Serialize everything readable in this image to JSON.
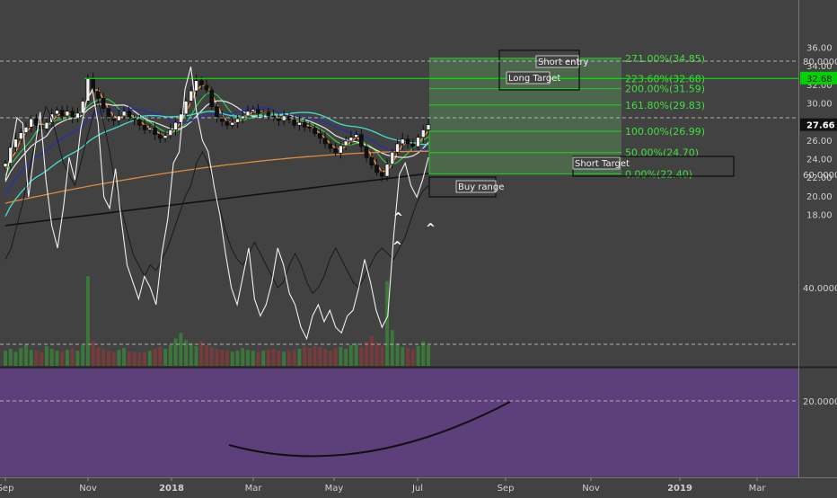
{
  "colors": {
    "background": "#424242",
    "rsi_background": "#5d3f7b",
    "fib_line": "#22c322",
    "fib_zone": "#4f6b4f",
    "fib_label": "#3ee03e",
    "price_line": "#00e000",
    "rsi_line": "#f0f0f0",
    "rsi_dark_line": "#1a1a1a",
    "curve": "#111111",
    "volume_up": "#3a7f3a",
    "volume_down": "#7f3a3a",
    "ma_orange": "#ff9a3a",
    "ma_green": "#2ecc40",
    "ma_white": "#e8e8e8",
    "ma_blue": "#2430b4",
    "ma_cyan": "#40e0d0",
    "ma_tan": "#e08a3a",
    "ma_black": "#111111"
  },
  "chart_data": {
    "type": "candlestick",
    "price_axis": {
      "ticks": [
        "36.00",
        "34.00",
        "32.00",
        "30.00",
        "28.00",
        "26.00",
        "24.00",
        "22.00",
        "20.00",
        "18.00"
      ],
      "range": [
        17,
        36.5
      ]
    },
    "rsi_axis": {
      "ticks": [
        "80.0000",
        "60.0000",
        "40.0000",
        "20.0000"
      ],
      "range": [
        18,
        84
      ]
    },
    "time_axis": {
      "labels": [
        "Sep",
        "Nov",
        "2018",
        "Mar",
        "May",
        "Jul",
        "Sep",
        "Nov",
        "2019",
        "Mar"
      ]
    },
    "last_price": "27.66",
    "level_badge": "32.68",
    "fib_levels": [
      {
        "label": "271.00%(34.85)",
        "value": 34.85
      },
      {
        "label": "223.60%(32.68)",
        "value": 32.68
      },
      {
        "label": "200.00%(31.59)",
        "value": 31.59
      },
      {
        "label": "161.80%(29.83)",
        "value": 29.83
      },
      {
        "label": "100.00%(26.99)",
        "value": 26.99
      },
      {
        "label": "50.00%(24.70)",
        "value": 24.7
      },
      {
        "label": "0.00%(22.40)",
        "value": 22.4
      }
    ],
    "annotations": [
      "Short entry",
      "Long Target",
      "Short Target",
      "Buy range"
    ],
    "price_series": [
      [
        23.5,
        25.2,
        26.1,
        26.8,
        27.4,
        28.3,
        27.6,
        27.2,
        27.9,
        28.8,
        29.2,
        28.6,
        29.1,
        28.4,
        28.9,
        30.2,
        32.6,
        31.2,
        30.5,
        29.4,
        28.3,
        28.1,
        28.6,
        29.1,
        28.4,
        28.2,
        27.6,
        27.1,
        27.3,
        26.6,
        26.2,
        26.5,
        27.1,
        27.9,
        28.8,
        30.2,
        31.3,
        32.4,
        31.9,
        31.4,
        29.6,
        28.5,
        28.0,
        27.6,
        27.9,
        28.3,
        28.6,
        29.1,
        29.3,
        28.9,
        29.0,
        28.6,
        28.4,
        28.1,
        28.6,
        28.2,
        27.6,
        27.9,
        27.4,
        27.3,
        26.7,
        26.2,
        25.6,
        25.1,
        24.6,
        25.4,
        25.9,
        26.3,
        26.6,
        25.3,
        24.1,
        23.3,
        22.5,
        22.1,
        23.4,
        24.7,
        25.6,
        26.1,
        25.6,
        25.3,
        26.3,
        27.1,
        27.66
      ]
    ],
    "rsi_series": [
      [
        59,
        64,
        70,
        69,
        56,
        64,
        71,
        59,
        51,
        47,
        54,
        63,
        59,
        68,
        73,
        75,
        69,
        56,
        54,
        61,
        52,
        44,
        41,
        38,
        42,
        40,
        37,
        46,
        52,
        62,
        64,
        75,
        79,
        71,
        66,
        64,
        58,
        53,
        46,
        40,
        37,
        42,
        47,
        38,
        35,
        37,
        41,
        47,
        44,
        39,
        37,
        33,
        31,
        35,
        37,
        34,
        36,
        33,
        32,
        35,
        36,
        40,
        45,
        41,
        36,
        33,
        35,
        49,
        60,
        62,
        58,
        56,
        59,
        63
      ],
      [
        45,
        47,
        51,
        55,
        60,
        65,
        68,
        72,
        70,
        66,
        62,
        60,
        58,
        62,
        66,
        70,
        73,
        69,
        64,
        58,
        54,
        50,
        46,
        44,
        42,
        44,
        43,
        45,
        47,
        50,
        53,
        56,
        58,
        62,
        64,
        62,
        58,
        54,
        50,
        47,
        45,
        44,
        46,
        48,
        46,
        44,
        42,
        40,
        41,
        44,
        46,
        44,
        41,
        39,
        40,
        42,
        45,
        47,
        45,
        43,
        41,
        40,
        42,
        44,
        46,
        47,
        46,
        45,
        47,
        49,
        52,
        55,
        57,
        58
      ]
    ],
    "volume": [
      1.6,
      1.8,
      1.5,
      1.9,
      2.3,
      1.7,
      1.6,
      1.4,
      2.1,
      1.8,
      1.6,
      1.5,
      1.7,
      1.9,
      1.6,
      2.2,
      9.5,
      2.6,
      2.0,
      1.8,
      1.6,
      1.5,
      1.7,
      1.9,
      1.6,
      1.5,
      1.4,
      1.5,
      1.6,
      1.8,
      2.0,
      1.8,
      2.2,
      2.9,
      3.5,
      2.7,
      2.4,
      2.1,
      2.6,
      2.2,
      2.0,
      1.8,
      1.7,
      1.6,
      1.5,
      1.6,
      1.9,
      1.7,
      1.6,
      1.5,
      1.6,
      1.7,
      1.8,
      1.6,
      1.5,
      1.6,
      1.7,
      1.8,
      2.0,
      1.9,
      2.1,
      2.0,
      1.8,
      1.6,
      1.9,
      2.0,
      1.8,
      2.2,
      2.4,
      2.0,
      2.6,
      3.2,
      2.5,
      2.1,
      9.0,
      3.8,
      2.4,
      2.0,
      1.9,
      1.8,
      2.1,
      2.6,
      2.2
    ]
  }
}
